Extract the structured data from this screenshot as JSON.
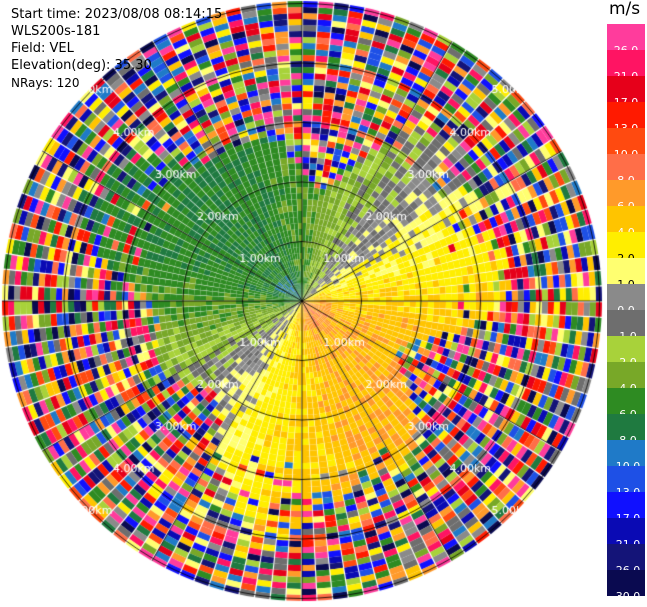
{
  "info": {
    "start_time": "Start time: 2023/08/08 08:14:15",
    "station": "WLS200s-181",
    "field": "Field: VEL",
    "elevation": "Elevation(deg): 35.30",
    "nrays": "NRays: 120"
  },
  "range_rings": {
    "labels": [
      "1.00km",
      "2.00km",
      "3.00km",
      "4.00km",
      "5.00km"
    ],
    "values_km": [
      1,
      2,
      3,
      4,
      5
    ]
  },
  "colorbar": {
    "unit": "m/s",
    "tick_labels": [
      "26.0",
      "21.0",
      "17.0",
      "13.0",
      "10.0",
      "8.0",
      "6.0",
      "4.0",
      "2.0",
      "1.0",
      "0.0",
      "-1.0",
      "-2.0",
      "-4.0",
      "-6.0",
      "-8.0",
      "-10.0",
      "-13.0",
      "-17.0",
      "-21.0",
      "-26.0",
      "-30.0"
    ],
    "colors": [
      "#ff3c9c",
      "#ff1463",
      "#e6001a",
      "#ff1a00",
      "#ff4a10",
      "#ff6e48",
      "#ff9a2a",
      "#ffc400",
      "#ffee00",
      "#ffff70",
      "#8a8a8a",
      "#6e6e6e",
      "#a8d23a",
      "#78a828",
      "#2e8b22",
      "#1f7a40",
      "#1f7ac8",
      "#1e50e6",
      "#1010ff",
      "#0a0ab4",
      "#141478",
      "#0a0a50"
    ]
  }
}
